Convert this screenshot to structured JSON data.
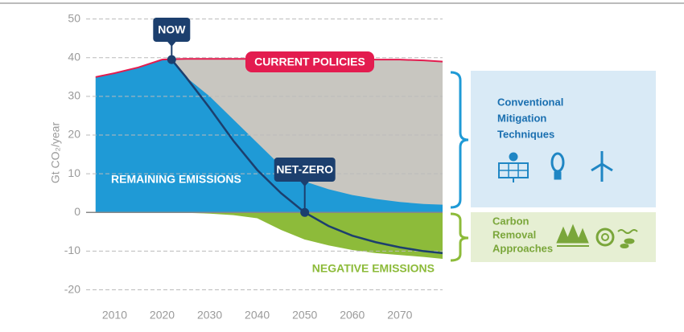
{
  "chart_data": {
    "type": "area",
    "ylabel": "Gt CO₂/year",
    "x": [
      2006,
      2010,
      2015,
      2020,
      2022,
      2025,
      2030,
      2035,
      2040,
      2045,
      2050,
      2055,
      2060,
      2065,
      2070,
      2075,
      2079
    ],
    "series": [
      {
        "name": "CURRENT POLICIES",
        "color": "#e31c4f",
        "values": [
          35,
          36,
          37.5,
          39.5,
          39.6,
          39.7,
          39.7,
          39.7,
          39.7,
          39.7,
          39.7,
          39.6,
          39.6,
          39.5,
          39.5,
          39.3,
          39
        ]
      },
      {
        "name": "REMAINING EMISSIONS",
        "color": "#1f9ad6",
        "values": [
          35,
          36,
          37.5,
          39.5,
          39.5,
          35,
          30,
          24,
          18,
          12,
          8,
          6,
          4.5,
          3.5,
          2.7,
          2.2,
          2
        ]
      },
      {
        "name": "NEGATIVE EMISSIONS",
        "color": "#8dbb3a",
        "values": [
          0,
          0,
          0,
          0,
          0,
          -0.1,
          -0.3,
          -0.7,
          -1.5,
          -4.5,
          -7,
          -8.5,
          -9.7,
          -10.5,
          -11,
          -11.5,
          -12
        ]
      },
      {
        "color": "#1c3f6e",
        "values": [
          null,
          null,
          null,
          null,
          39.5,
          35,
          27,
          18.5,
          11,
          5,
          0,
          -3.5,
          -6,
          -7.7,
          -9,
          -10,
          -10.5
        ]
      }
    ],
    "annotations": [
      "NOW",
      "NET-ZERO"
    ],
    "xlim": [
      2004,
      2079
    ],
    "xticks": [
      2010,
      2020,
      2030,
      2040,
      2050,
      2060,
      2070
    ],
    "ylim": [
      -23,
      52
    ],
    "yticks": [
      -20,
      -10,
      0,
      10,
      20,
      30,
      40,
      50
    ],
    "grid": true
  },
  "side_panels": [
    {
      "lines": [
        "Conventional",
        "Mitigation",
        "Techniques"
      ]
    },
    {
      "lines": [
        "Carbon",
        "Removal",
        "Approaches"
      ]
    }
  ]
}
